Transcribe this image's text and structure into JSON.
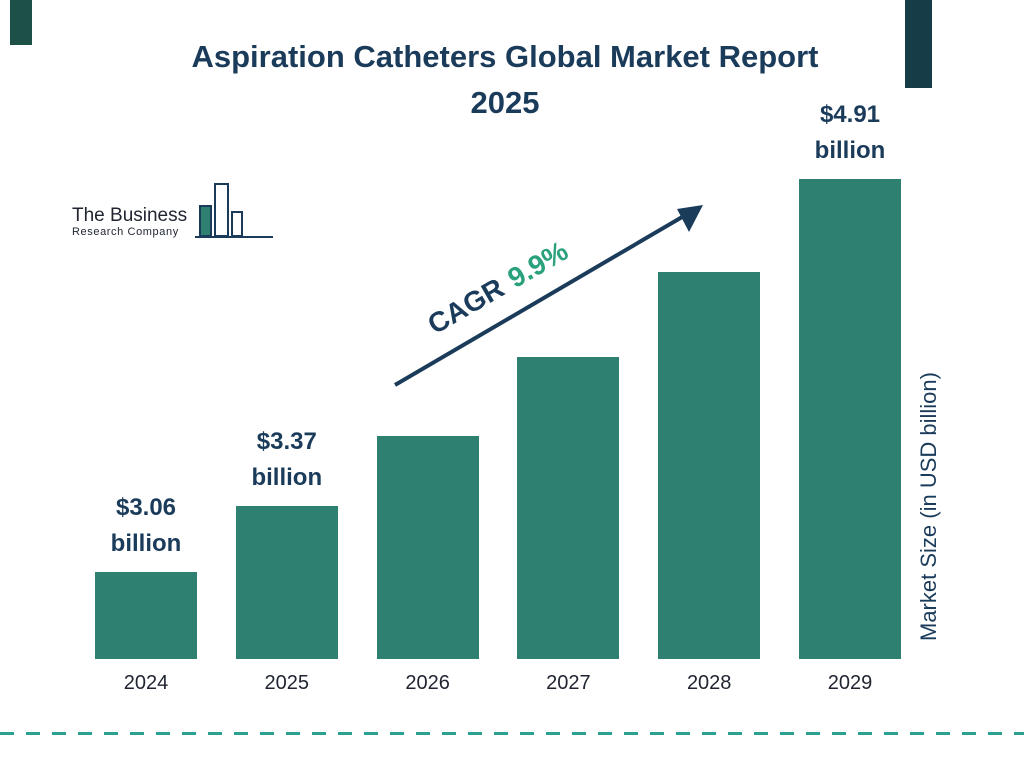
{
  "title": {
    "line1": "Aspiration Catheters Global Market Report",
    "line2": "2025"
  },
  "logo": {
    "line1": "The Business",
    "line2": "Research Company"
  },
  "cagr": {
    "prefix": "CAGR",
    "value": "9.9%"
  },
  "chart_data": {
    "type": "bar",
    "title": "Aspiration Catheters Global Market Report 2025",
    "categories": [
      "2024",
      "2025",
      "2026",
      "2027",
      "2028",
      "2029"
    ],
    "values": [
      3.06,
      3.37,
      3.7,
      4.07,
      4.47,
      4.91
    ],
    "bar_labels": [
      "$3.06 billion",
      "$3.37 billion",
      "",
      "",
      "",
      "$4.91 billion"
    ],
    "xlabel": "",
    "ylabel": "Market Size (in USD billion)",
    "cagr": "9.9%",
    "legend": "none",
    "grid": false,
    "baseline_value": 2.65,
    "top_value": 4.91
  },
  "colors": {
    "navy": "#1b3b5a",
    "bar-teal": "#2e8070",
    "accent-green": "#2aa17c",
    "dashed-line": "#2aa193",
    "corner-left": "#1d5148",
    "corner-right": "#153c47",
    "year-text": "#1f2430",
    "logo-text": "#1f2430"
  }
}
